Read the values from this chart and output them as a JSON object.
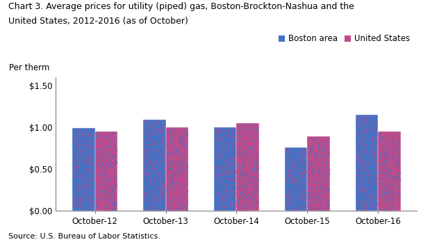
{
  "title_line1": "Chart 3. Average prices for utility (piped) gas, Boston-Brockton-Nashua and the",
  "title_line2": "United States, 2012-2016 (as of October)",
  "ylabel": "Per therm",
  "source": "Source: U.S. Bureau of Labor Statistics.",
  "categories": [
    "October-12",
    "October-13",
    "October-14",
    "October-15",
    "October-16"
  ],
  "boston_values": [
    0.99,
    1.09,
    1.0,
    0.76,
    1.15
  ],
  "us_values": [
    0.95,
    1.0,
    1.05,
    0.89,
    0.95
  ],
  "boston_color": "#4472C4",
  "us_color": "#BE4B8A",
  "ylim": [
    0,
    1.6
  ],
  "yticks": [
    0.0,
    0.5,
    1.0,
    1.5
  ],
  "ytick_labels": [
    "$0.00",
    "$0.50",
    "$1.00",
    "$1.50"
  ],
  "legend_labels": [
    "Boston area",
    "United States"
  ],
  "bar_width": 0.32,
  "title_fontsize": 9,
  "axis_fontsize": 8.5,
  "tick_fontsize": 8.5,
  "legend_fontsize": 8.5,
  "source_fontsize": 8
}
